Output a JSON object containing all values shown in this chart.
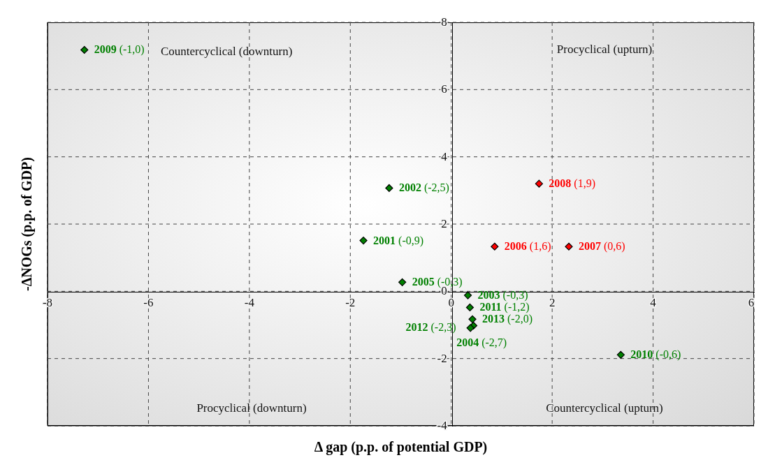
{
  "chart_data": {
    "type": "scatter",
    "xlabel": "Δ gap (p.p. of potential GDP)",
    "ylabel": "-ΔNOGs (p.p. of GDP)",
    "xlim": [
      -8,
      6
    ],
    "ylim": [
      -4,
      8
    ],
    "xticks": [
      -8,
      -6,
      -4,
      -2,
      0,
      2,
      4,
      6
    ],
    "yticks": [
      -4,
      -2,
      0,
      2,
      4,
      6,
      8
    ],
    "grid": true,
    "marker": "diamond",
    "annotations": [
      "Countercyclical (downturn)",
      "Procyclical (upturn)",
      "Procyclical (downturn)",
      "Countercyclical (upturn)"
    ],
    "series": [
      {
        "color": "#008000",
        "x": [
          -7.27,
          -1.23,
          -1.74,
          -0.97,
          0.33,
          0.37,
          0.42,
          0.44,
          0.38,
          3.36
        ],
        "values": [
          7.18,
          3.07,
          1.51,
          0.27,
          -0.12,
          -0.48,
          -0.83,
          -1.02,
          -1.09,
          -1.89
        ],
        "value_labels": [
          "2009 (-1,0)",
          "2002 (-2,5)",
          "2001 (-0,9)",
          "2005 (-0,3)",
          "2003 (-0,3)",
          "2011 (-1,2)",
          "2013 (-2,0)",
          "2012 (-2,3)",
          "2004 (-2,7)",
          "2010 (-0,6)"
        ]
      },
      {
        "color": "#ff0000",
        "x": [
          1.74,
          0.86,
          2.33
        ],
        "values": [
          3.2,
          1.33,
          1.33
        ],
        "value_labels": [
          "2008 (1,9)",
          "2006 (1,6)",
          "2007 (0,6)"
        ]
      }
    ]
  }
}
